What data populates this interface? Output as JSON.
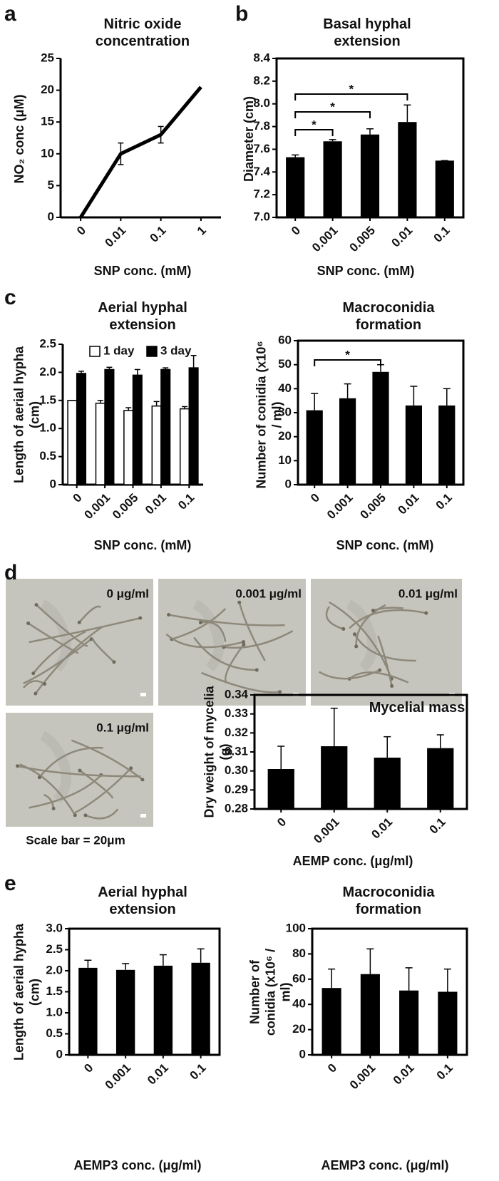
{
  "panels": [
    "a",
    "b",
    "c",
    "d",
    "e"
  ],
  "micrographs": {
    "labels": [
      "0 μg/ml",
      "0.001 μg/ml",
      "0.01 μg/ml",
      "0.1 μg/ml"
    ],
    "scale_bar": "Scale bar = 20μm"
  },
  "chart_data": [
    {
      "type": "line",
      "title": "Nitric oxide concentration",
      "x_label": "SNP conc. (mM)",
      "y_label": "NO₂ conc (μM)",
      "categories": [
        "0",
        "0.01",
        "0.1",
        "1"
      ],
      "values": [
        0,
        10,
        13,
        20.5
      ],
      "errors": [
        0,
        1.7,
        1.3,
        0
      ],
      "color": "#000000",
      "ylim": [
        0,
        25
      ],
      "yticks": [
        0,
        5,
        10,
        15,
        20,
        25
      ],
      "frame": false
    },
    {
      "type": "bar",
      "title": "Basal hyphal extension",
      "x_label": "SNP conc. (mM)",
      "y_label": "Diameter (cm)",
      "categories": [
        "0",
        "0.001",
        "0.005",
        "0.01",
        "0.1"
      ],
      "values": [
        7.53,
        7.67,
        7.73,
        7.84,
        7.5
      ],
      "errors": [
        0.02,
        0.015,
        0.05,
        0.15,
        0
      ],
      "color": "#000000",
      "ylim": [
        7.0,
        8.4
      ],
      "yticks": [
        {
          "value": 7,
          "label": "7.0"
        },
        7.2,
        7.4,
        7.6,
        7.8,
        {
          "value": 8,
          "label": "8.0"
        },
        8.2,
        8.4
      ],
      "frame": true,
      "significance": [
        {
          "from": 0,
          "to": 1,
          "label": "*"
        },
        {
          "from": 0,
          "to": 2,
          "label": "*"
        },
        {
          "from": 0,
          "to": 3,
          "label": "*"
        }
      ]
    },
    {
      "type": "bar",
      "title": "Aerial hyphal extension",
      "x_label": "SNP conc. (mM)",
      "y_label": "Length of aerial hypha (cm)",
      "categories": [
        "0",
        "0.001",
        "0.005",
        "0.01",
        "0.1"
      ],
      "series": [
        {
          "name": "1 day",
          "color": "#ffffff",
          "values": [
            1.5,
            1.45,
            1.32,
            1.4,
            1.35
          ],
          "errors": [
            0,
            0.05,
            0.05,
            0.08,
            0.04
          ]
        },
        {
          "name": "3 day",
          "color": "#000000",
          "values": [
            1.98,
            2.05,
            1.95,
            2.05,
            2.08
          ],
          "errors": [
            0.04,
            0.04,
            0.1,
            0.03,
            0.22
          ]
        }
      ],
      "ylim": [
        0,
        2.5
      ],
      "yticks": [
        0,
        0.5,
        {
          "value": 1,
          "label": "1.0"
        },
        1.5,
        {
          "value": 2,
          "label": "2.0"
        },
        2.5
      ],
      "legend": "upper left",
      "frame": false
    },
    {
      "type": "bar",
      "title": "Macroconidia formation",
      "x_label": "SNP conc. (mM)",
      "y_label": "Number of conidia (x10⁶ / ml)",
      "categories": [
        "0",
        "0.001",
        "0.005",
        "0.01",
        "0.1"
      ],
      "values": [
        31,
        36,
        47,
        33,
        33
      ],
      "errors": [
        7,
        6,
        3,
        8,
        7
      ],
      "color": "#000000",
      "ylim": [
        0,
        60
      ],
      "yticks": [
        0,
        10,
        20,
        30,
        40,
        50,
        60
      ],
      "frame": true,
      "significance": [
        {
          "from": 0,
          "to": 2,
          "label": "*"
        }
      ]
    },
    {
      "type": "bar",
      "title": "Mycelial mass",
      "x_label": "AEMP conc. (μg/ml)",
      "y_label": "Dry weight of mycelia (g)",
      "categories": [
        "0",
        "0.001",
        "0.01",
        "0.1"
      ],
      "values": [
        0.301,
        0.313,
        0.307,
        0.312
      ],
      "errors": [
        0.012,
        0.02,
        0.011,
        0.007
      ],
      "color": "#000000",
      "ylim": [
        0.28,
        0.34
      ],
      "yticks": [
        0.28,
        0.29,
        {
          "value": 0.3,
          "label": "0.30"
        },
        0.31,
        0.32,
        0.33,
        0.34
      ],
      "frame": true
    },
    {
      "type": "bar",
      "title": "Aerial hyphal extension",
      "x_label": "AEMP3 conc. (μg/ml)",
      "y_label": "Length of aerial hypha (cm)",
      "categories": [
        "0",
        "0.001",
        "0.01",
        "0.1"
      ],
      "values": [
        2.07,
        2.02,
        2.12,
        2.19
      ],
      "errors": [
        0.18,
        0.15,
        0.26,
        0.33
      ],
      "color": "#000000",
      "ylim": [
        0,
        3.0
      ],
      "yticks": [
        0,
        0.5,
        {
          "value": 1,
          "label": "1.0"
        },
        1.5,
        {
          "value": 2,
          "label": "2.0"
        },
        2.5,
        {
          "value": 3,
          "label": "3.0"
        }
      ],
      "frame": true
    },
    {
      "type": "bar",
      "title": "Macroconidia formation",
      "x_label": "AEMP3 conc. (μg/ml)",
      "y_label": "Number of conidia (x10⁶ / ml)",
      "categories": [
        "0",
        "0.001",
        "0.01",
        "0.1"
      ],
      "values": [
        53,
        64,
        51,
        50
      ],
      "errors": [
        15,
        20,
        18,
        18
      ],
      "color": "#000000",
      "ylim": [
        0,
        100
      ],
      "yticks": [
        0,
        20,
        40,
        60,
        80,
        100
      ],
      "frame": true
    }
  ]
}
